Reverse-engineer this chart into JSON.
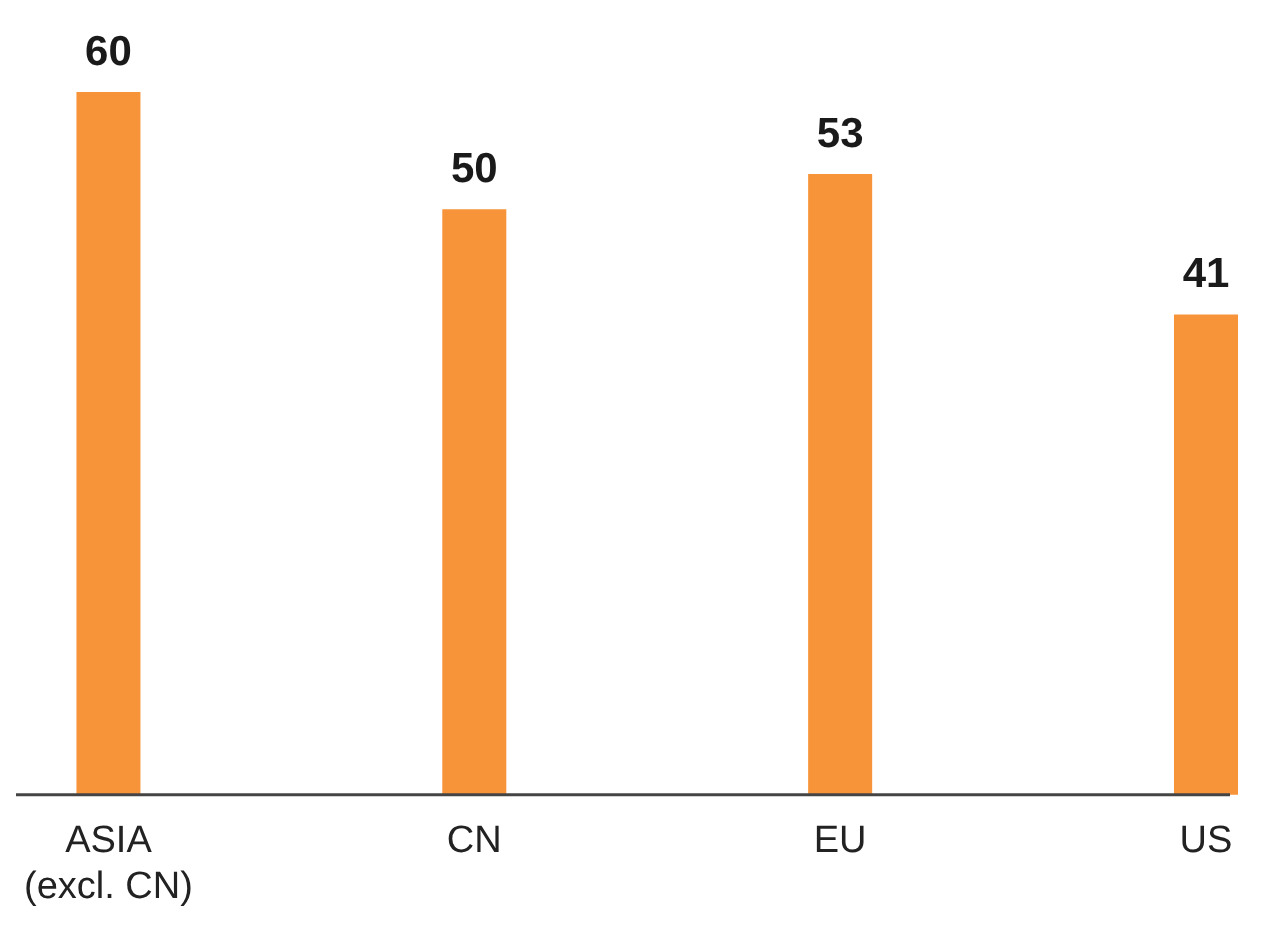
{
  "chart_data": {
    "type": "bar",
    "categories": [
      "ASIA\n(excl. CN)",
      "CN",
      "EU",
      "US"
    ],
    "values": [
      60,
      50,
      53,
      41
    ],
    "color": "#f7943a",
    "data_labels": true,
    "grid": false,
    "legend": false
  }
}
